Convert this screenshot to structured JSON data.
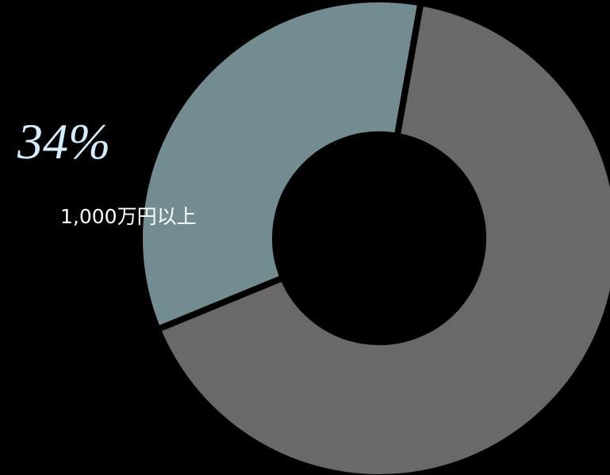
{
  "chart_data": {
    "type": "donut",
    "categories": [
      "1,000万円以上",
      null
    ],
    "values": [
      34,
      66
    ],
    "value_labels": [
      "34%",
      null
    ],
    "colors": [
      "#738c92",
      "#696969"
    ]
  }
}
